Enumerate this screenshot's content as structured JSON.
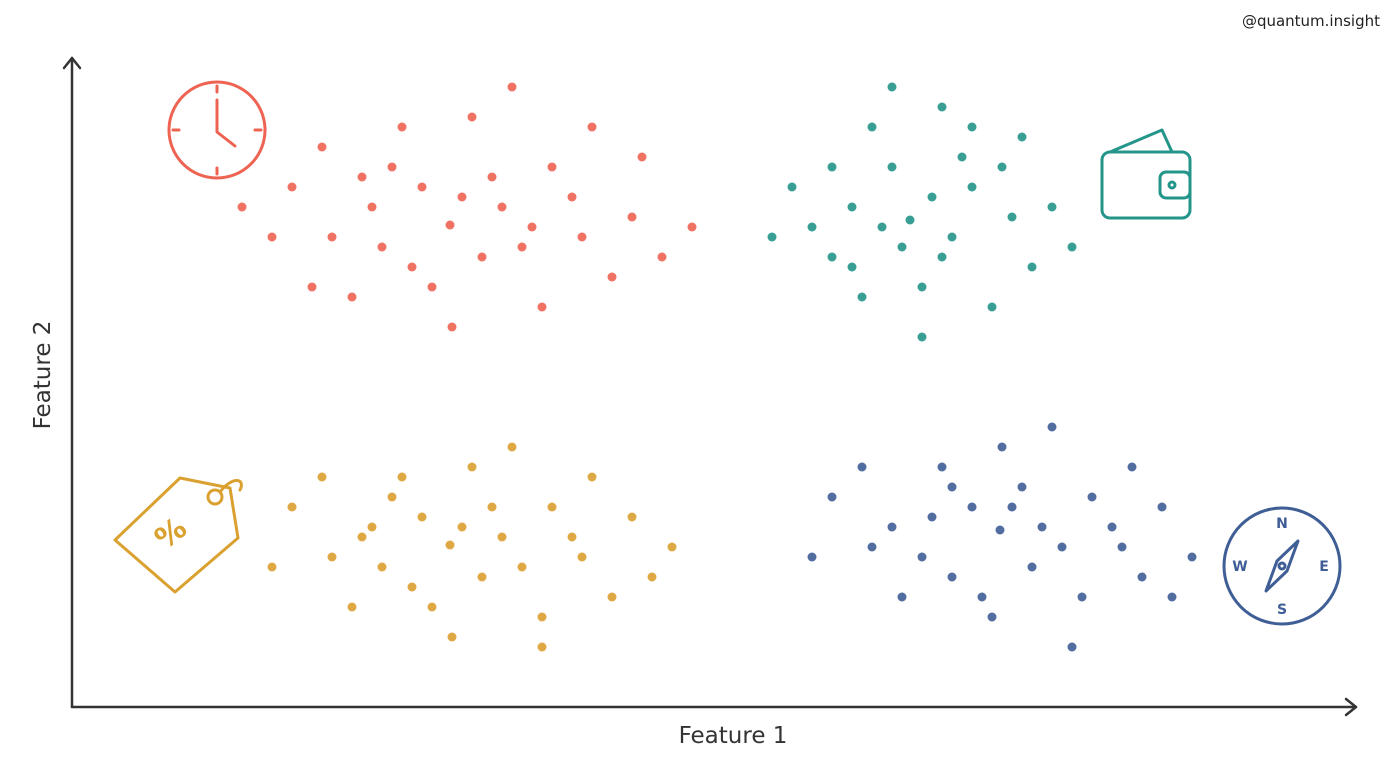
{
  "chart_data": {
    "type": "scatter",
    "xlabel": "Feature 1",
    "ylabel": "Feature 2",
    "xlim": [
      0,
      1283
    ],
    "ylim": [
      0,
      647
    ],
    "series": [
      {
        "color": "#ee6352",
        "x": [
          378,
          300,
          450,
          420,
          340,
          500,
          260,
          560,
          400,
          330,
          470,
          380,
          220,
          590,
          280,
          520,
          440,
          200,
          620,
          350,
          410,
          480,
          310,
          430,
          360,
          540,
          250,
          170,
          460,
          390,
          320,
          510,
          290,
          570,
          240
        ],
        "values": [
          482,
          500,
          460,
          530,
          440,
          510,
          470,
          490,
          590,
          580,
          400,
          380,
          520,
          450,
          410,
          580,
          620,
          470,
          480,
          520,
          450,
          540,
          460,
          500,
          420,
          430,
          560,
          500,
          480,
          510,
          540,
          470,
          530,
          550,
          420
        ]
      },
      {
        "color": "#24958a",
        "x": [
          838,
          780,
          880,
          820,
          900,
          760,
          940,
          850,
          800,
          870,
          720,
          960,
          830,
          890,
          790,
          920,
          860,
          740,
          980,
          810,
          870,
          900,
          760,
          700,
          1000,
          850,
          820,
          930,
          780,
          950
        ],
        "values": [
          487,
          500,
          470,
          540,
          520,
          450,
          490,
          420,
          580,
          600,
          520,
          440,
          460,
          550,
          410,
          400,
          510,
          480,
          500,
          480,
          450,
          580,
          540,
          470,
          460,
          370,
          620,
          540,
          440,
          570
        ]
      },
      {
        "color": "#daa030",
        "x": [
          378,
          300,
          450,
          420,
          340,
          500,
          260,
          560,
          400,
          330,
          470,
          380,
          220,
          580,
          280,
          520,
          440,
          200,
          600,
          350,
          410,
          480,
          310,
          430,
          360,
          540,
          250,
          470,
          390,
          320,
          510,
          290
        ],
        "values": [
          162,
          180,
          140,
          200,
          120,
          170,
          150,
          190,
          240,
          230,
          90,
          70,
          200,
          130,
          100,
          230,
          260,
          140,
          160,
          190,
          130,
          200,
          140,
          170,
          100,
          110,
          230,
          60,
          180,
          210,
          150,
          170
        ]
      },
      {
        "color": "#3f5e96",
        "x": [
          928,
          860,
          990,
          950,
          880,
          1040,
          800,
          1090,
          930,
          870,
          1010,
          920,
          760,
          1120,
          830,
          1060,
          980,
          740,
          1100,
          900,
          960,
          1020,
          850,
          970,
          910,
          1070,
          790,
          1000,
          940,
          880,
          1050,
          820
        ],
        "values": [
          177,
          190,
          160,
          220,
          130,
          180,
          160,
          200,
          260,
          240,
          110,
          90,
          210,
          150,
          110,
          240,
          280,
          150,
          110,
          200,
          140,
          210,
          150,
          180,
          110,
          130,
          240,
          60,
          200,
          220,
          160,
          180
        ]
      }
    ]
  },
  "watermark": "@quantum.insight",
  "icons": {
    "tag": "%",
    "compass": {
      "n": "N",
      "e": "E",
      "s": "S",
      "w": "W"
    }
  }
}
